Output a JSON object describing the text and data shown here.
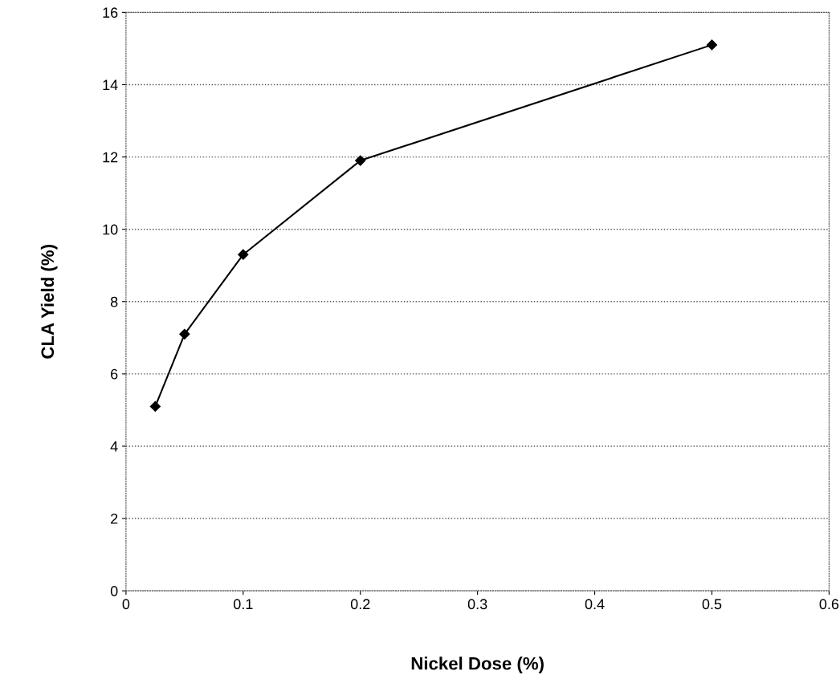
{
  "chart_data": {
    "type": "line",
    "xlabel": "Nickel Dose (%)",
    "ylabel": "CLA Yield (%)",
    "x": [
      0.025,
      0.05,
      0.1,
      0.2,
      0.5
    ],
    "series": [
      {
        "color": "#000000",
        "values": [
          5.1,
          7.1,
          9.3,
          11.9,
          15.1
        ]
      }
    ],
    "xlim": [
      0,
      0.6
    ],
    "xticks": [
      0,
      0.1,
      0.2,
      0.3,
      0.4,
      0.5,
      0.6
    ],
    "ylim": [
      0,
      16
    ],
    "yticks": [
      0,
      2,
      4,
      6,
      8,
      10,
      12,
      14,
      16
    ],
    "grid": "y",
    "marker": "diamond",
    "line_style": "solid"
  }
}
